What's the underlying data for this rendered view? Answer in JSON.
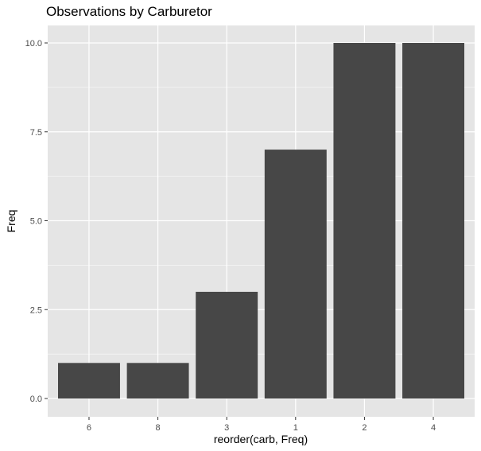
{
  "chart_data": {
    "type": "bar",
    "title": "Observations by Carburetor",
    "xlabel": "reorder(carb, Freq)",
    "ylabel": "Freq",
    "categories": [
      "6",
      "8",
      "3",
      "1",
      "2",
      "4"
    ],
    "values": [
      1,
      1,
      3,
      7,
      10,
      10
    ],
    "ylim": [
      -0.5,
      10.5
    ],
    "yticks": [
      0,
      2.5,
      5,
      7.5,
      10
    ],
    "ytick_labels": [
      "0.0",
      "2.5",
      "5.0",
      "7.5",
      "10.0"
    ],
    "grid": true,
    "legend": "none"
  },
  "colors": {
    "panel_background": "#e5e5e5",
    "grid_major": "#ffffff",
    "bar_fill": "#474747",
    "tick_mark": "#333333",
    "tick_text": "#4d4d4d"
  }
}
